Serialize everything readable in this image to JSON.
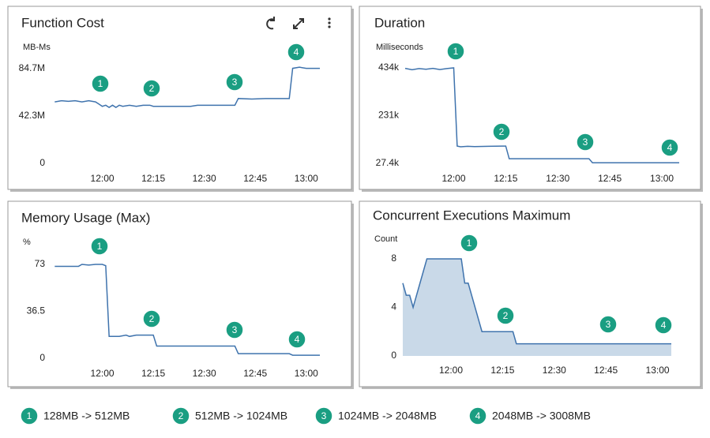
{
  "chart_data": [
    {
      "type": "line",
      "title": "Function Cost",
      "y_label": "MB-Ms",
      "color": "#3f73ad",
      "xlim": [
        705,
        784
      ],
      "ylim": [
        0,
        84700000
      ],
      "xticks": [
        {
          "value": 720,
          "label": "12:00"
        },
        {
          "value": 735,
          "label": "12:15"
        },
        {
          "value": 750,
          "label": "12:30"
        },
        {
          "value": 765,
          "label": "12:45"
        },
        {
          "value": 780,
          "label": "13:00"
        }
      ],
      "yticks": [
        0,
        {
          "value": 42300000,
          "label": "42.3M"
        },
        {
          "value": 84700000,
          "label": "84.7M"
        }
      ],
      "x": [
        706,
        708,
        710,
        712,
        714,
        716,
        718,
        719,
        720,
        721,
        722,
        723,
        724,
        725,
        726,
        728,
        730,
        732,
        734,
        735,
        740,
        746,
        748,
        759,
        760,
        764,
        768,
        775,
        776,
        778,
        780,
        784
      ],
      "values": [
        55000000,
        56000000,
        55500000,
        56000000,
        55000000,
        56000000,
        55000000,
        53000000,
        51000000,
        52000000,
        50000000,
        52000000,
        50000000,
        52000000,
        51000000,
        52000000,
        51000000,
        52000000,
        52000000,
        51000000,
        51000000,
        51000000,
        52000000,
        52000000,
        58000000,
        57500000,
        58000000,
        58000000,
        85000000,
        86000000,
        85000000,
        85000000
      ],
      "annotations": [
        "1",
        "2",
        "3",
        "4"
      ]
    },
    {
      "type": "line",
      "title": "Duration",
      "y_label": "Milliseconds",
      "color": "#3f73ad",
      "xlim": [
        706,
        785
      ],
      "ylim": [
        27400,
        434000
      ],
      "xticks": [
        {
          "value": 720,
          "label": "12:00"
        },
        {
          "value": 735,
          "label": "12:15"
        },
        {
          "value": 750,
          "label": "12:30"
        },
        {
          "value": 765,
          "label": "12:45"
        },
        {
          "value": 780,
          "label": "13:00"
        }
      ],
      "yticks": [
        {
          "value": 27400,
          "label": "27.4k"
        },
        {
          "value": 231000,
          "label": "231k"
        },
        {
          "value": 434000,
          "label": "434k"
        }
      ],
      "x": [
        706,
        708,
        710,
        712,
        714,
        716,
        718,
        720,
        721,
        722,
        724,
        726,
        730,
        735,
        736,
        745,
        759,
        760,
        770,
        785
      ],
      "values": [
        432000,
        426000,
        431000,
        428000,
        432000,
        427000,
        431000,
        434000,
        101000,
        98000,
        100000,
        99000,
        100000,
        101000,
        47000,
        47000,
        47000,
        30000,
        30000,
        30000
      ],
      "annotations": [
        "1",
        "2",
        "3",
        "4"
      ]
    },
    {
      "type": "line",
      "title": "Memory Usage (Max)",
      "y_label": "%",
      "color": "#3f73ad",
      "xlim": [
        705,
        784
      ],
      "ylim": [
        0,
        73
      ],
      "xticks": [
        {
          "value": 720,
          "label": "12:00"
        },
        {
          "value": 735,
          "label": "12:15"
        },
        {
          "value": 750,
          "label": "12:30"
        },
        {
          "value": 765,
          "label": "12:45"
        },
        {
          "value": 780,
          "label": "13:00"
        }
      ],
      "yticks": [
        0,
        36.5,
        73
      ],
      "x": [
        706,
        713,
        714,
        716,
        718,
        720,
        721,
        722,
        725,
        727,
        728,
        730,
        735,
        736,
        759,
        760,
        775,
        776,
        784
      ],
      "values": [
        71.5,
        71.5,
        73,
        72.5,
        73,
        73,
        72,
        17,
        17,
        18,
        17,
        18,
        18,
        9.5,
        9.5,
        3.6,
        3.6,
        2.4,
        2.4
      ],
      "annotations": [
        "1",
        "2",
        "3",
        "4"
      ]
    },
    {
      "type": "area",
      "title": "Concurrent Executions Maximum",
      "y_label": "Count",
      "color": "#3f73ad",
      "fill": "#c9d9e8",
      "xlim": [
        706,
        784
      ],
      "ylim": [
        0,
        8
      ],
      "xticks": [
        {
          "value": 720,
          "label": "12:00"
        },
        {
          "value": 735,
          "label": "12:15"
        },
        {
          "value": 750,
          "label": "12:30"
        },
        {
          "value": 765,
          "label": "12:45"
        },
        {
          "value": 780,
          "label": "13:00"
        }
      ],
      "yticks": [
        0,
        4,
        8
      ],
      "x": [
        706,
        707,
        708,
        709,
        711,
        713,
        723,
        724,
        725,
        729,
        738,
        739,
        784
      ],
      "values": [
        6,
        5,
        5,
        4,
        6,
        8,
        8,
        6,
        6,
        2,
        2,
        1,
        1
      ],
      "annotations": [
        "1",
        "2",
        "3",
        "4"
      ]
    }
  ],
  "legend": [
    {
      "marker": "1",
      "text": "128MB -> 512MB"
    },
    {
      "marker": "2",
      "text": "512MB -> 1024MB"
    },
    {
      "marker": "3",
      "text": "1024MB -> 2048MB"
    },
    {
      "marker": "4",
      "text": "2048MB -> 3008MB"
    }
  ]
}
